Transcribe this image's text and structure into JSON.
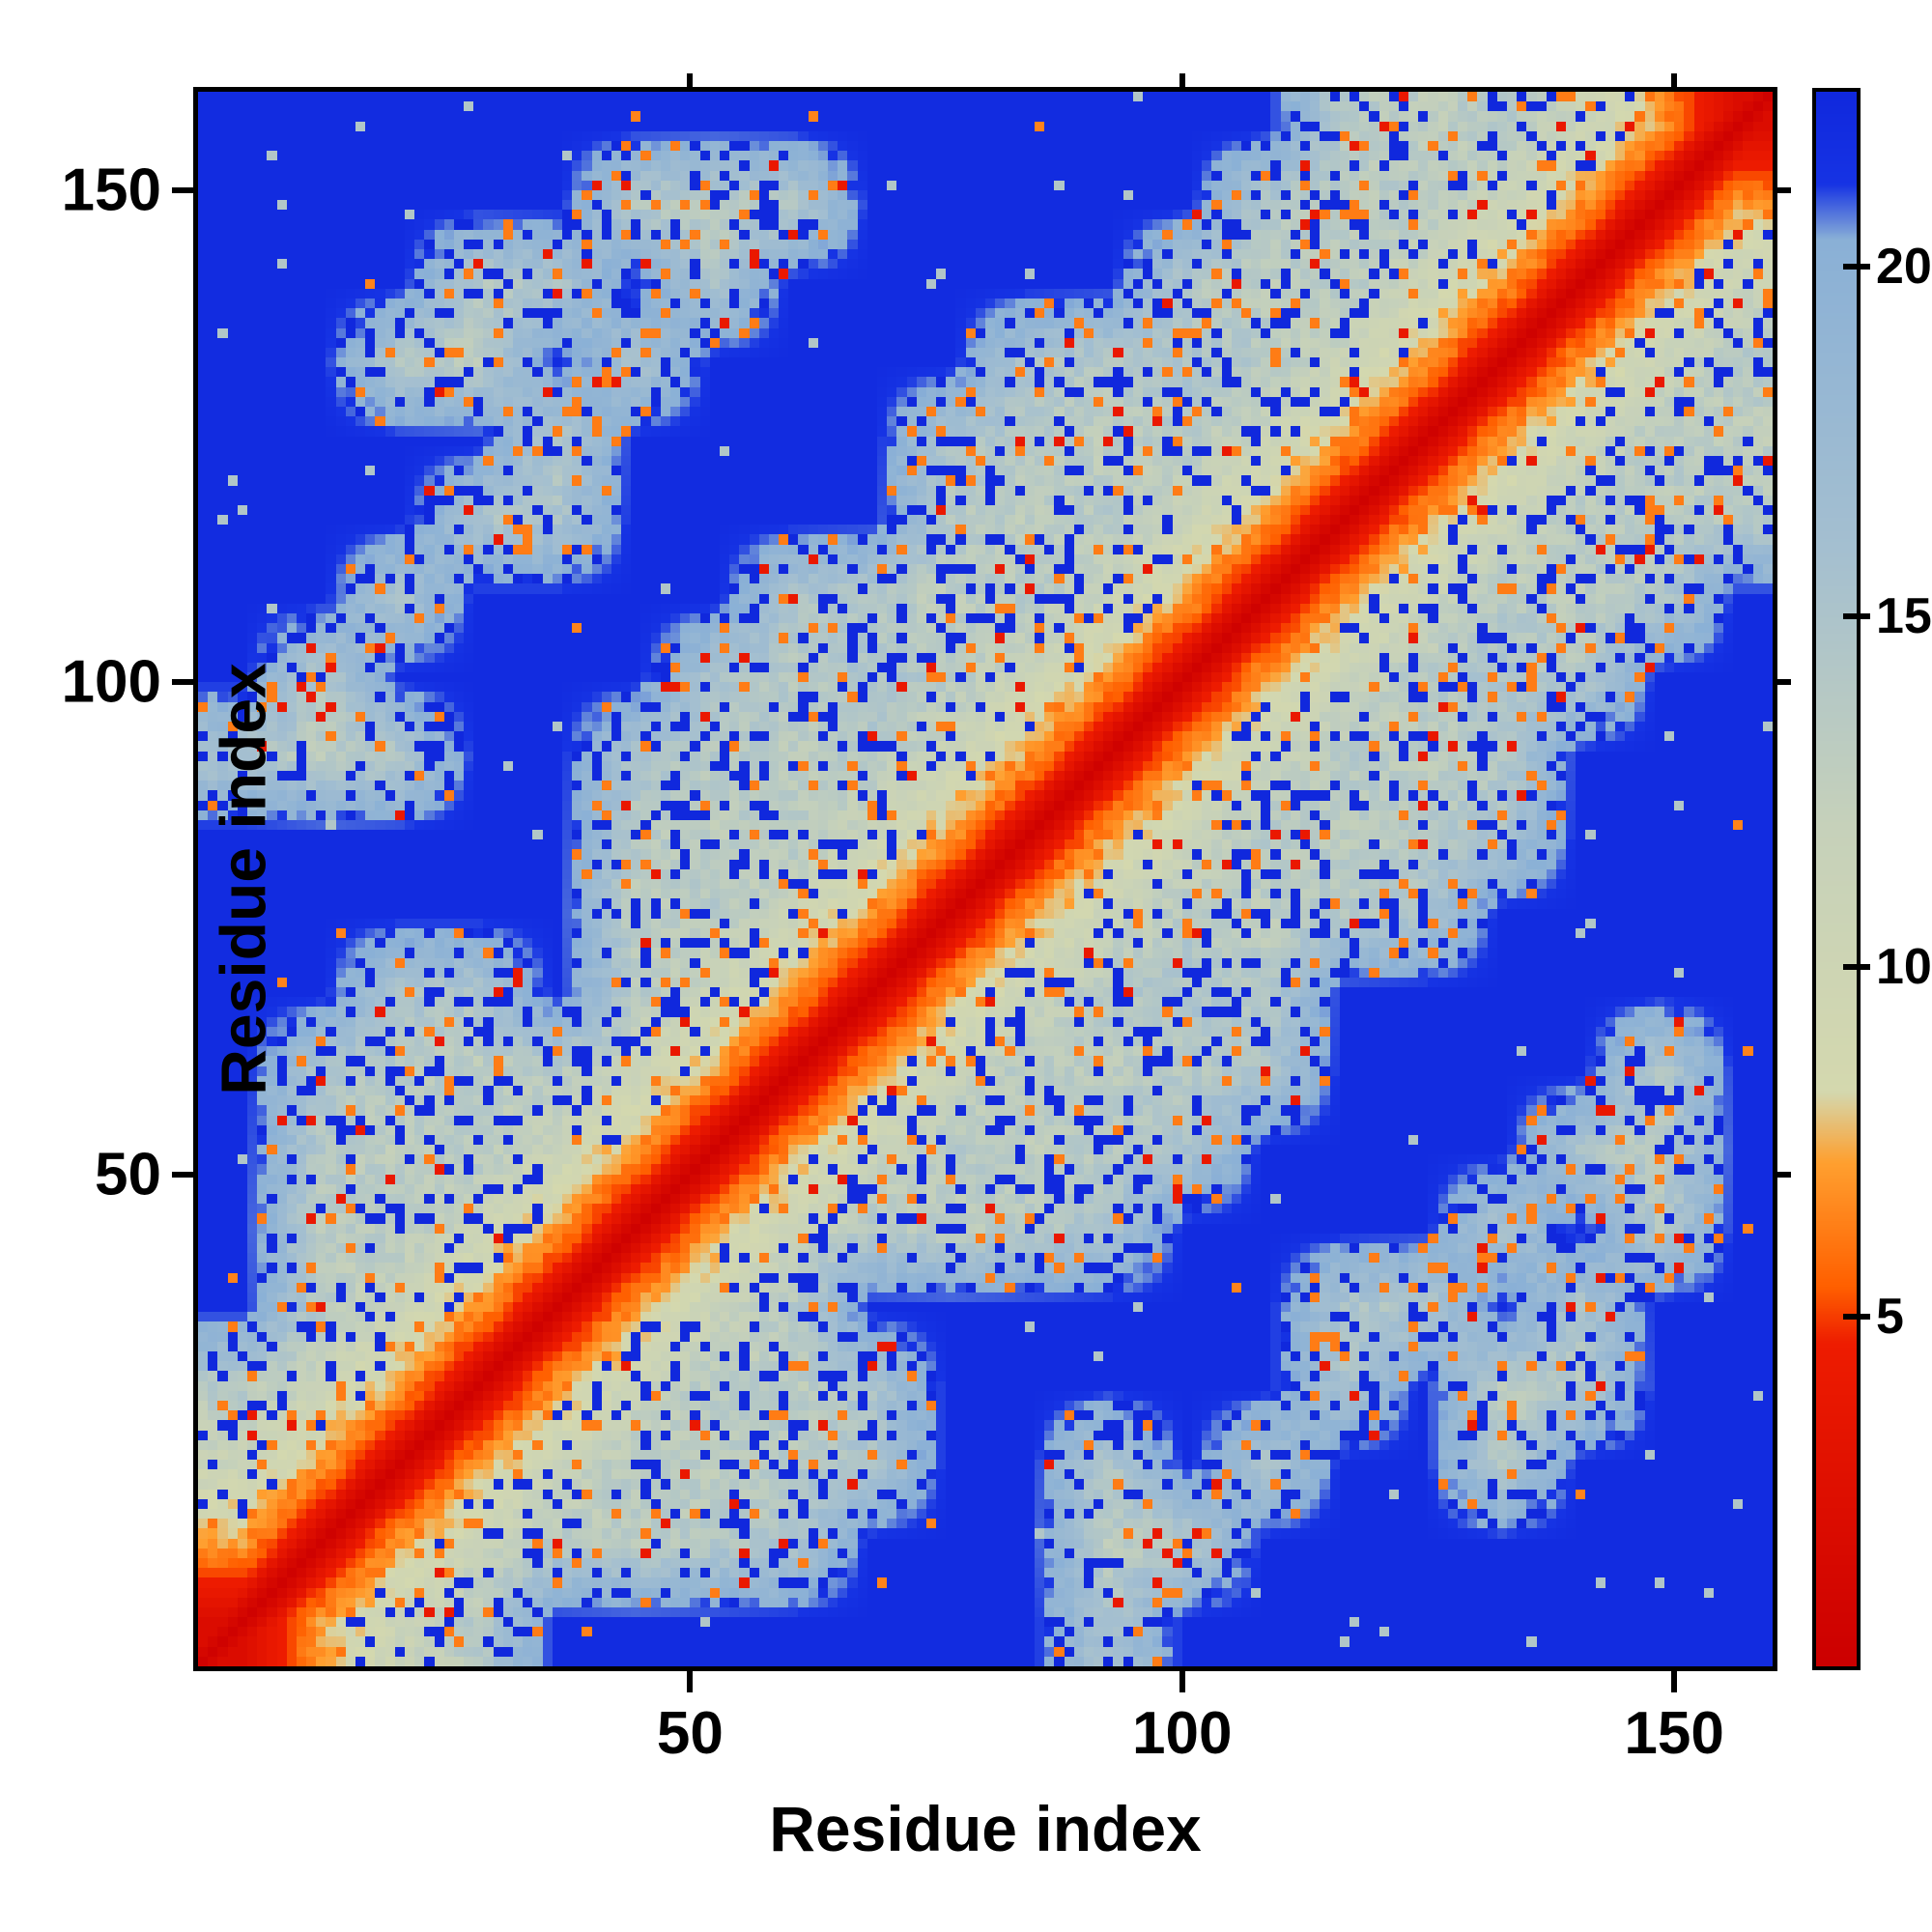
{
  "chart_data": {
    "type": "heatmap",
    "title": "",
    "xlabel": "Residue index",
    "ylabel": "Residue index",
    "x_ticks": [
      50,
      100,
      150
    ],
    "y_ticks": [
      50,
      100,
      150
    ],
    "axis_max": 160,
    "n_residues": 160,
    "block_size": 8,
    "origin": "bottom-left",
    "colorbar_ticks": [
      5,
      10,
      15,
      20
    ],
    "colorbar_max": 22.5,
    "background_color": "#1028dd",
    "frame_color": "#000000",
    "colormap_stops": [
      [
        0.0,
        "#cc0000"
      ],
      [
        4.6,
        "#ee1c00"
      ],
      [
        5.4,
        "#ff5f00"
      ],
      [
        7.2,
        "#ffa030"
      ],
      [
        8.2,
        "#d4d8ae"
      ],
      [
        12.0,
        "#c6d1ba"
      ],
      [
        16.0,
        "#a4bfd0"
      ],
      [
        20.4,
        "#8ab0d6"
      ],
      [
        21.2,
        "#1633e4"
      ],
      [
        22.5,
        "#1028dd"
      ]
    ],
    "diagonal_profile": {
      "offsets": [
        0,
        1,
        2,
        3,
        4,
        5,
        6,
        7,
        8,
        10,
        12,
        14,
        16,
        18
      ],
      "values": [
        0.4,
        1.2,
        2.2,
        3.4,
        4.8,
        6.0,
        7.0,
        8.0,
        9.0,
        10.8,
        12.6,
        14.4,
        16.2,
        18.0
      ]
    },
    "coarse_distance_matrix": [
      [
        2,
        7,
        11,
        14,
        22,
        22,
        22,
        22,
        22,
        22,
        22,
        15,
        22,
        22,
        22,
        22,
        22,
        22,
        22,
        22
      ],
      [
        7,
        2,
        7,
        11,
        14,
        13,
        14,
        15,
        22,
        22,
        22,
        13,
        14,
        22,
        22,
        22,
        22,
        22,
        22,
        22
      ],
      [
        11,
        7,
        2,
        7,
        11,
        14,
        13,
        14,
        15,
        22,
        22,
        14,
        22,
        15,
        22,
        22,
        14,
        22,
        22,
        22
      ],
      [
        14,
        11,
        7,
        2,
        7,
        11,
        14,
        13,
        15,
        22,
        22,
        22,
        22,
        22,
        15,
        22,
        13,
        14,
        22,
        22
      ],
      [
        22,
        14,
        11,
        7,
        2,
        7,
        11,
        14,
        22,
        22,
        22,
        22,
        22,
        22,
        15,
        14,
        22,
        15,
        22,
        22
      ],
      [
        22,
        13,
        14,
        11,
        7,
        2,
        7,
        11,
        14,
        13,
        14,
        15,
        22,
        22,
        22,
        22,
        15,
        22,
        14,
        22
      ],
      [
        22,
        14,
        13,
        14,
        11,
        7,
        2,
        7,
        11,
        14,
        13,
        14,
        15,
        22,
        22,
        22,
        22,
        15,
        13,
        22
      ],
      [
        22,
        15,
        14,
        13,
        14,
        11,
        7,
        2,
        7,
        11,
        14,
        13,
        14,
        15,
        22,
        22,
        22,
        22,
        14,
        22
      ],
      [
        22,
        22,
        15,
        15,
        22,
        14,
        11,
        7,
        2,
        7,
        11,
        14,
        15,
        14,
        22,
        22,
        22,
        22,
        22,
        22
      ],
      [
        22,
        22,
        22,
        22,
        22,
        13,
        14,
        11,
        7,
        2,
        7,
        11,
        14,
        13,
        14,
        15,
        22,
        22,
        22,
        22
      ],
      [
        22,
        22,
        22,
        22,
        22,
        14,
        13,
        14,
        11,
        7,
        2,
        7,
        11,
        14,
        13,
        14,
        15,
        22,
        22,
        22
      ],
      [
        15,
        13,
        14,
        22,
        22,
        15,
        14,
        13,
        14,
        11,
        7,
        2,
        7,
        11,
        14,
        13,
        14,
        22,
        22,
        22
      ],
      [
        22,
        14,
        22,
        22,
        22,
        22,
        15,
        14,
        15,
        14,
        11,
        7,
        2,
        7,
        11,
        14,
        15,
        14,
        22,
        22
      ],
      [
        22,
        22,
        15,
        22,
        22,
        22,
        22,
        15,
        14,
        13,
        14,
        11,
        7,
        2,
        7,
        11,
        14,
        13,
        14,
        22
      ],
      [
        22,
        22,
        22,
        15,
        15,
        22,
        22,
        22,
        22,
        14,
        13,
        14,
        11,
        7,
        2,
        7,
        11,
        14,
        13,
        14
      ],
      [
        22,
        22,
        22,
        22,
        14,
        22,
        22,
        22,
        22,
        15,
        14,
        13,
        14,
        11,
        7,
        2,
        7,
        11,
        14,
        13
      ],
      [
        22,
        22,
        14,
        13,
        22,
        15,
        22,
        22,
        22,
        22,
        15,
        14,
        15,
        14,
        11,
        7,
        2,
        7,
        11,
        14
      ],
      [
        22,
        22,
        22,
        14,
        15,
        22,
        15,
        22,
        22,
        22,
        22,
        22,
        14,
        13,
        14,
        11,
        7,
        2,
        7,
        11
      ],
      [
        22,
        22,
        22,
        22,
        22,
        14,
        13,
        14,
        22,
        22,
        22,
        22,
        22,
        14,
        13,
        14,
        11,
        7,
        2,
        7
      ],
      [
        22,
        22,
        22,
        22,
        22,
        22,
        22,
        22,
        22,
        22,
        22,
        22,
        22,
        22,
        14,
        13,
        14,
        11,
        7,
        2
      ]
    ],
    "speckle_seed": 1234567,
    "speckle": {
      "orange": 0.05,
      "red": 0.015,
      "blue": 0.16,
      "band_orange": 0.08,
      "far_pale": 0.006,
      "far_orange": 0.002
    }
  }
}
